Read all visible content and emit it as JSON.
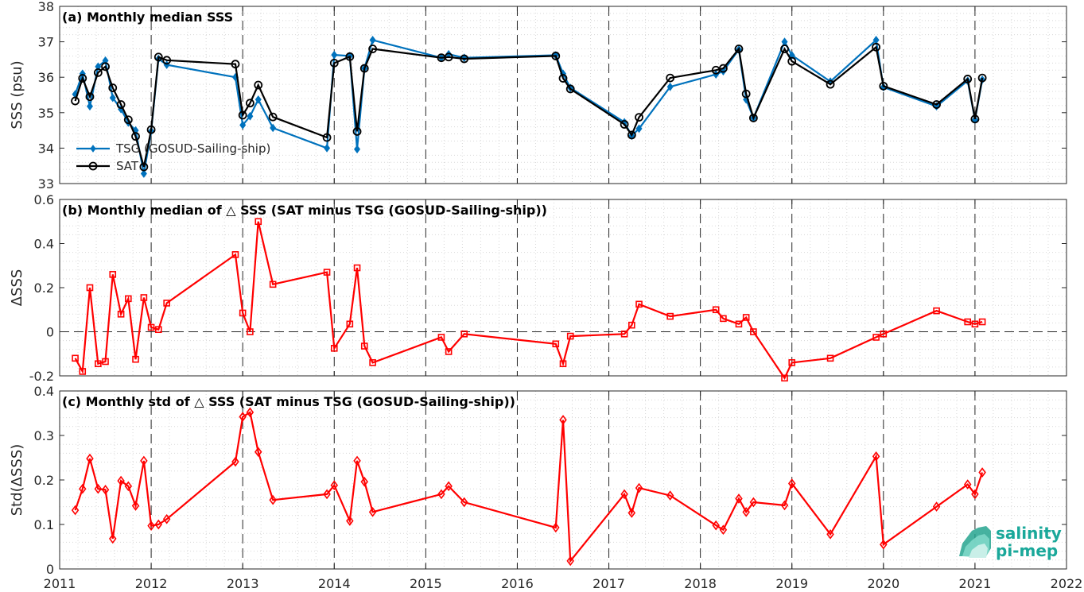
{
  "chart_data": [
    {
      "type": "line",
      "title": "(a) Monthly median SSS",
      "ylabel": "SSS (psu)",
      "xlim": [
        2011,
        2022
      ],
      "ylim": [
        33,
        38
      ],
      "yticks": [
        33,
        34,
        35,
        36,
        37,
        38
      ],
      "grid": true,
      "legend_position": "bottom-left",
      "series": [
        {
          "name": "TSG (GOSUD-Sailing-ship)",
          "color": "#0072BD",
          "marker": "diamond",
          "x": [
            2011.17,
            2011.25,
            2011.33,
            2011.42,
            2011.5,
            2011.58,
            2011.67,
            2011.75,
            2011.83,
            2011.92,
            2012.0,
            2012.08,
            2012.17,
            2012.92,
            2013.0,
            2013.08,
            2013.17,
            2013.33,
            2013.92,
            2014.0,
            2014.17,
            2014.25,
            2014.33,
            2014.42,
            2015.17,
            2015.25,
            2015.42,
            2016.42,
            2016.5,
            2016.58,
            2017.17,
            2017.25,
            2017.33,
            2017.67,
            2018.17,
            2018.25,
            2018.42,
            2018.5,
            2018.58,
            2018.92,
            2019.0,
            2019.42,
            2019.92,
            2020.0,
            2020.58,
            2020.92,
            2021.0,
            2021.08
          ],
          "values": [
            35.52,
            36.1,
            35.18,
            36.3,
            36.47,
            35.42,
            35.1,
            34.72,
            34.5,
            33.28,
            34.48,
            36.52,
            36.35,
            36.0,
            34.65,
            34.9,
            35.37,
            34.57,
            34.0,
            36.63,
            36.6,
            33.97,
            36.25,
            37.05,
            36.55,
            36.65,
            36.55,
            36.62,
            36.1,
            35.7,
            34.73,
            34.35,
            34.55,
            35.73,
            36.08,
            36.17,
            36.78,
            35.37,
            34.85,
            37.0,
            36.62,
            35.88,
            37.05,
            35.72,
            35.18,
            35.9,
            34.8,
            35.93
          ]
        },
        {
          "name": "SAT",
          "color": "#000000",
          "marker": "circle",
          "x": [
            2011.17,
            2011.25,
            2011.33,
            2011.42,
            2011.5,
            2011.58,
            2011.67,
            2011.75,
            2011.83,
            2011.92,
            2012.0,
            2012.08,
            2012.17,
            2012.92,
            2013.0,
            2013.08,
            2013.17,
            2013.33,
            2013.92,
            2014.0,
            2014.17,
            2014.25,
            2014.33,
            2014.42,
            2015.17,
            2015.25,
            2015.42,
            2016.42,
            2016.5,
            2016.58,
            2017.17,
            2017.25,
            2017.33,
            2017.67,
            2018.17,
            2018.25,
            2018.42,
            2018.5,
            2018.58,
            2018.92,
            2019.0,
            2019.42,
            2019.92,
            2020.0,
            2020.58,
            2020.92,
            2021.0,
            2021.08
          ],
          "values": [
            35.33,
            35.97,
            35.45,
            36.13,
            36.3,
            35.7,
            35.23,
            34.8,
            34.33,
            33.47,
            34.52,
            36.57,
            36.48,
            36.37,
            34.93,
            35.27,
            35.78,
            34.88,
            34.3,
            36.4,
            36.58,
            34.47,
            36.25,
            36.8,
            36.55,
            36.57,
            36.52,
            36.6,
            35.97,
            35.67,
            34.67,
            34.37,
            34.87,
            35.98,
            36.2,
            36.25,
            36.8,
            35.53,
            34.85,
            36.8,
            36.45,
            35.8,
            36.85,
            35.75,
            35.23,
            35.95,
            34.82,
            35.98
          ]
        }
      ]
    },
    {
      "type": "line",
      "title": "(b) Monthly median of △ SSS (SAT minus TSG (GOSUD-Sailing-ship))",
      "ylabel": "ΔSSS",
      "xlim": [
        2011,
        2022
      ],
      "ylim": [
        -0.2,
        0.6
      ],
      "yticks": [
        "-0.2",
        "0",
        "0.2",
        "0.4",
        "0.6"
      ],
      "grid": true,
      "reference_line_y": 0,
      "series": [
        {
          "color": "#FF0000",
          "marker": "square",
          "x": [
            2011.17,
            2011.25,
            2011.33,
            2011.42,
            2011.5,
            2011.58,
            2011.67,
            2011.75,
            2011.83,
            2011.92,
            2012.0,
            2012.08,
            2012.17,
            2012.92,
            2013.0,
            2013.08,
            2013.17,
            2013.33,
            2013.92,
            2014.0,
            2014.17,
            2014.25,
            2014.33,
            2014.42,
            2015.17,
            2015.25,
            2015.42,
            2016.42,
            2016.5,
            2016.58,
            2017.17,
            2017.25,
            2017.33,
            2017.67,
            2018.17,
            2018.25,
            2018.42,
            2018.5,
            2018.58,
            2018.92,
            2019.0,
            2019.42,
            2019.92,
            2020.0,
            2020.58,
            2020.92,
            2021.0,
            2021.08
          ],
          "values": [
            -0.12,
            -0.18,
            0.2,
            -0.145,
            -0.135,
            0.26,
            0.08,
            0.15,
            -0.125,
            0.155,
            0.02,
            0.01,
            0.13,
            0.35,
            0.085,
            0.0,
            0.5,
            0.215,
            0.27,
            -0.075,
            0.035,
            0.29,
            -0.065,
            -0.14,
            -0.025,
            -0.09,
            -0.01,
            -0.055,
            -0.145,
            -0.02,
            -0.01,
            0.03,
            0.125,
            0.07,
            0.1,
            0.06,
            0.035,
            0.065,
            0.0,
            -0.21,
            -0.14,
            -0.12,
            -0.025,
            -0.01,
            0.095,
            0.045,
            0.035,
            0.045
          ]
        }
      ]
    },
    {
      "type": "line",
      "title": "(c) Monthly std of △ SSS (SAT minus TSG (GOSUD-Sailing-ship))",
      "ylabel": "Std(ΔSSS)",
      "xlim": [
        2011,
        2022
      ],
      "ylim": [
        0,
        0.4
      ],
      "yticks": [
        "0",
        "0.1",
        "0.2",
        "0.3",
        "0.4"
      ],
      "xticks": [
        "2011",
        "2012",
        "2013",
        "2014",
        "2015",
        "2016",
        "2017",
        "2018",
        "2019",
        "2020",
        "2021",
        "2022"
      ],
      "grid": true,
      "series": [
        {
          "color": "#FF0000",
          "marker": "diamond",
          "x": [
            2011.17,
            2011.25,
            2011.33,
            2011.42,
            2011.5,
            2011.58,
            2011.67,
            2011.75,
            2011.83,
            2011.92,
            2012.0,
            2012.08,
            2012.17,
            2012.92,
            2013.0,
            2013.08,
            2013.17,
            2013.33,
            2013.92,
            2014.0,
            2014.17,
            2014.25,
            2014.33,
            2014.42,
            2015.17,
            2015.25,
            2015.42,
            2016.42,
            2016.5,
            2016.58,
            2017.17,
            2017.25,
            2017.33,
            2017.67,
            2018.17,
            2018.25,
            2018.42,
            2018.5,
            2018.58,
            2018.92,
            2019.0,
            2019.42,
            2019.92,
            2020.0,
            2020.58,
            2020.92,
            2021.0,
            2021.08
          ],
          "values": [
            0.132,
            0.18,
            0.248,
            0.18,
            0.178,
            0.068,
            0.198,
            0.186,
            0.142,
            0.243,
            0.097,
            0.1,
            0.112,
            0.241,
            0.342,
            0.352,
            0.263,
            0.155,
            0.168,
            0.188,
            0.108,
            0.243,
            0.196,
            0.128,
            0.168,
            0.186,
            0.15,
            0.093,
            0.335,
            0.018,
            0.168,
            0.126,
            0.182,
            0.165,
            0.098,
            0.088,
            0.158,
            0.128,
            0.15,
            0.143,
            0.192,
            0.078,
            0.253,
            0.055,
            0.14,
            0.19,
            0.168,
            0.217
          ]
        }
      ]
    }
  ],
  "logo": {
    "line1": "salinity",
    "line2": "pi-mep"
  }
}
